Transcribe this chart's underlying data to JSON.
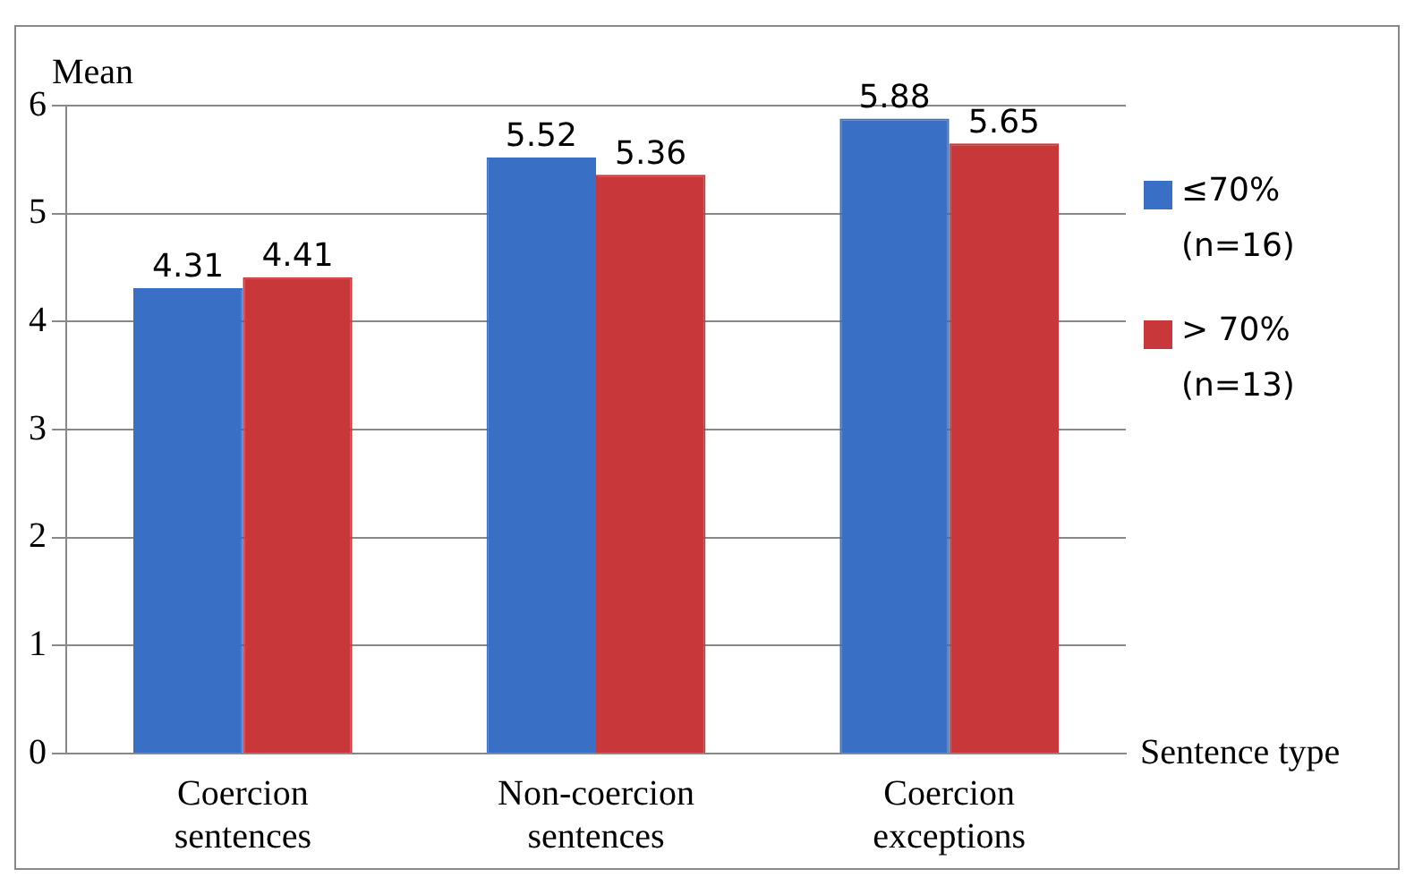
{
  "chart_data": {
    "type": "bar",
    "xlabel": "Sentence type",
    "ylabel": "Mean",
    "categories": [
      "Coercion sentences",
      "Non-coercion sentences",
      "Coercion exceptions"
    ],
    "series": [
      {
        "name": "≤70%\n(n=16)",
        "color": "#3a6fc6",
        "values": [
          4.31,
          5.52,
          5.88
        ]
      },
      {
        "name": "> 70%\n(n=13)",
        "color": "#c8383a",
        "values": [
          4.41,
          5.36,
          5.65
        ]
      }
    ],
    "ylim": [
      0,
      6
    ],
    "yticks": [
      0,
      1,
      2,
      3,
      4,
      5,
      6
    ],
    "grid": "y",
    "legend": "right",
    "data_labels": true
  }
}
